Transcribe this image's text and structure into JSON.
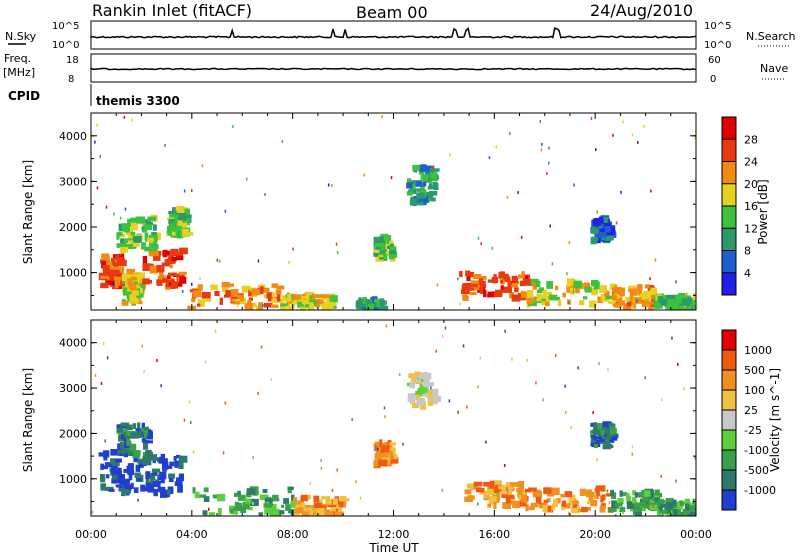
{
  "header": {
    "title": "Rankin Inlet (fitACF)",
    "beam": "Beam 00",
    "date": "24/Aug/2010"
  },
  "noise_panel": {
    "left_label": "N.Sky",
    "left_ticks": [
      "10^5",
      "10^0"
    ],
    "right_label": "N.Search",
    "right_ticks": [
      "10^5",
      "10^0"
    ]
  },
  "freq_panel": {
    "left_label_1": "Freq.",
    "left_label_2": "[MHz]",
    "left_ticks": [
      "18",
      "8"
    ],
    "right_label": "Nave",
    "right_ticks": [
      "60",
      "0"
    ]
  },
  "cpid_panel": {
    "label": "CPID",
    "text": "themis 3300"
  },
  "chart_data": [
    {
      "type": "heatmap",
      "name": "power",
      "xlabel": "",
      "ylabel": "Slant Range [km]",
      "x_range_hours": [
        0,
        24
      ],
      "y_ticks": [
        "4000",
        "3000",
        "2000",
        "1000"
      ],
      "ylim": [
        180,
        4500
      ],
      "colorbar": {
        "label": "Power [dB]",
        "ticks": [
          "28",
          "24",
          "20",
          "16",
          "12",
          "8",
          "4"
        ],
        "colors": [
          "#1f1fe8",
          "#1e5fd0",
          "#2a9a6a",
          "#3cc23c",
          "#e8d020",
          "#f08a10",
          "#e83a10",
          "#e00000"
        ]
      },
      "regions": [
        {
          "t": [
            0.3,
            1.2
          ],
          "r": [
            700,
            1400
          ],
          "level": 6
        },
        {
          "t": [
            1.2,
            2.0
          ],
          "r": [
            300,
            1000
          ],
          "level": 4
        },
        {
          "t": [
            2.0,
            3.5
          ],
          "r": [
            700,
            1500
          ],
          "level": 6
        },
        {
          "t": [
            1.0,
            2.5
          ],
          "r": [
            1500,
            2200
          ],
          "level": 3
        },
        {
          "t": [
            3.0,
            3.8
          ],
          "r": [
            1800,
            2400
          ],
          "level": 3
        },
        {
          "t": [
            3.8,
            7.5
          ],
          "r": [
            200,
            750
          ],
          "level": 5
        },
        {
          "t": [
            7.5,
            9.5
          ],
          "r": [
            200,
            500
          ],
          "level": 4
        },
        {
          "t": [
            10.5,
            11.5
          ],
          "r": [
            200,
            400
          ],
          "level": 2
        },
        {
          "t": [
            11.2,
            11.9
          ],
          "r": [
            1300,
            1800
          ],
          "level": 3
        },
        {
          "t": [
            12.5,
            13.6
          ],
          "r": [
            2500,
            3300
          ],
          "level": 2
        },
        {
          "t": [
            14.6,
            17.2
          ],
          "r": [
            400,
            1000
          ],
          "level": 6
        },
        {
          "t": [
            17.2,
            20.5
          ],
          "r": [
            300,
            800
          ],
          "level": 4
        },
        {
          "t": [
            20.5,
            22.3
          ],
          "r": [
            250,
            700
          ],
          "level": 5
        },
        {
          "t": [
            19.8,
            20.6
          ],
          "r": [
            1700,
            2200
          ],
          "level": 1
        },
        {
          "t": [
            22.3,
            24.0
          ],
          "r": [
            200,
            500
          ],
          "level": 3
        }
      ]
    },
    {
      "type": "heatmap",
      "name": "velocity",
      "xlabel": "Time UT",
      "ylabel": "Slant Range [km]",
      "x_range_hours": [
        0,
        24
      ],
      "x_ticks": [
        "00:00",
        "04:00",
        "08:00",
        "12:00",
        "16:00",
        "20:00",
        "00:00"
      ],
      "y_ticks": [
        "4000",
        "3000",
        "2000",
        "1000"
      ],
      "ylim": [
        180,
        4500
      ],
      "colorbar": {
        "label": "Velocity [m s^-1]",
        "ticks": [
          "1000",
          "500",
          "100",
          "25",
          "-25",
          "-100",
          "-500",
          "-1000"
        ],
        "colors": [
          "#1f3fcc",
          "#2e7a6a",
          "#3aa04a",
          "#5ccf3a",
          "#c8c8c8",
          "#f0c040",
          "#f09020",
          "#f05a10",
          "#e00000"
        ]
      },
      "regions": [
        {
          "t": [
            0.3,
            1.8
          ],
          "r": [
            700,
            1600
          ],
          "level": 0
        },
        {
          "t": [
            1.8,
            3.5
          ],
          "r": [
            600,
            1500
          ],
          "level": 0
        },
        {
          "t": [
            1.0,
            2.2
          ],
          "r": [
            1500,
            2200
          ],
          "level": 1
        },
        {
          "t": [
            3.8,
            8.0
          ],
          "r": [
            200,
            800
          ],
          "level": 2
        },
        {
          "t": [
            8.0,
            10.0
          ],
          "r": [
            200,
            600
          ],
          "level": 6
        },
        {
          "t": [
            11.2,
            11.9
          ],
          "r": [
            1300,
            1800
          ],
          "level": 6
        },
        {
          "t": [
            12.5,
            13.6
          ],
          "r": [
            2600,
            3300
          ],
          "level": 4
        },
        {
          "t": [
            14.8,
            17.0
          ],
          "r": [
            400,
            900
          ],
          "level": 6
        },
        {
          "t": [
            17.0,
            20.5
          ],
          "r": [
            300,
            800
          ],
          "level": 6
        },
        {
          "t": [
            20.5,
            22.5
          ],
          "r": [
            250,
            700
          ],
          "level": 2
        },
        {
          "t": [
            19.8,
            20.6
          ],
          "r": [
            1700,
            2200
          ],
          "level": 1
        },
        {
          "t": [
            22.5,
            24.0
          ],
          "r": [
            200,
            500
          ],
          "level": 2
        }
      ]
    }
  ]
}
